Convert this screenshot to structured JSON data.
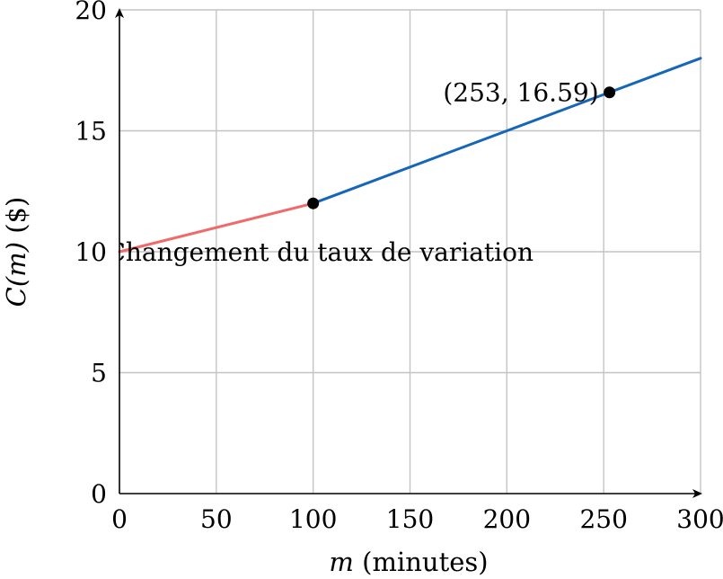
{
  "chart_data": {
    "type": "line",
    "title": "",
    "xlabel_var": "m",
    "xlabel_rest": " (minutes)",
    "ylabel_var": "C(m)",
    "ylabel_rest": " ($)",
    "xlim": [
      0,
      300
    ],
    "ylim": [
      0,
      20
    ],
    "xticks": [
      0,
      50,
      100,
      150,
      200,
      250,
      300
    ],
    "yticks": [
      0,
      5,
      10,
      15,
      20
    ],
    "grid": true,
    "series": [
      {
        "color": "#f06a6a",
        "x": [
          0,
          100
        ],
        "y": [
          10,
          12
        ]
      },
      {
        "color": "#1565b8",
        "x": [
          100,
          300
        ],
        "y": [
          12,
          18
        ]
      }
    ],
    "points": [
      {
        "x": 100,
        "y": 12,
        "color": "#000000"
      },
      {
        "x": 253,
        "y": 16.59,
        "color": "#000000"
      }
    ],
    "annotations": [
      {
        "text": "(253, 16.59)",
        "x": 253,
        "y": 16.59
      },
      {
        "text": "Changement du taux de variation",
        "x": 0,
        "y": 10
      }
    ]
  }
}
